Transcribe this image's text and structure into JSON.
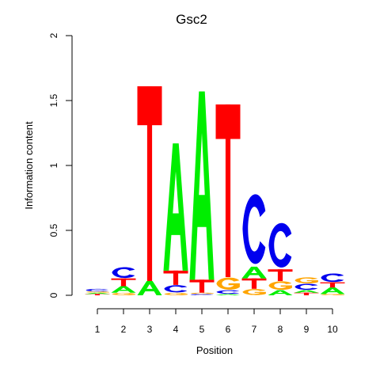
{
  "chart_data": {
    "type": "sequence_logo",
    "title": "Gsc2",
    "xlabel": "Position",
    "ylabel": "Information content",
    "ylim": [
      0,
      2
    ],
    "yticks": [
      "0",
      "0.5",
      "1",
      "1.5",
      "2"
    ],
    "x": [
      "1",
      "2",
      "3",
      "4",
      "5",
      "6",
      "7",
      "8",
      "9",
      "10"
    ],
    "colors": {
      "A": "#00ee00",
      "C": "#0000ee",
      "G": "#ffa500",
      "T": "#ff0000"
    },
    "positions": [
      {
        "position": 1,
        "letters": [
          {
            "base": "T",
            "height": 0.01
          },
          {
            "base": "A",
            "height": 0.01
          },
          {
            "base": "G",
            "height": 0.01
          },
          {
            "base": "C",
            "height": 0.02
          }
        ]
      },
      {
        "position": 2,
        "letters": [
          {
            "base": "G",
            "height": 0.02
          },
          {
            "base": "A",
            "height": 0.05
          },
          {
            "base": "T",
            "height": 0.06
          },
          {
            "base": "C",
            "height": 0.09
          }
        ]
      },
      {
        "position": 3,
        "letters": [
          {
            "base": "A",
            "height": 0.11
          },
          {
            "base": "T",
            "height": 1.5
          }
        ]
      },
      {
        "position": 4,
        "letters": [
          {
            "base": "G",
            "height": 0.02
          },
          {
            "base": "C",
            "height": 0.06
          },
          {
            "base": "T",
            "height": 0.11
          },
          {
            "base": "A",
            "height": 0.98
          }
        ]
      },
      {
        "position": 5,
        "letters": [
          {
            "base": "C",
            "height": 0.01
          },
          {
            "base": "G",
            "height": 0.01
          },
          {
            "base": "T",
            "height": 0.1
          },
          {
            "base": "A",
            "height": 1.45
          }
        ]
      },
      {
        "position": 6,
        "letters": [
          {
            "base": "A",
            "height": 0.01
          },
          {
            "base": "C",
            "height": 0.03
          },
          {
            "base": "G",
            "height": 0.1
          },
          {
            "base": "T",
            "height": 1.33
          }
        ]
      },
      {
        "position": 7,
        "letters": [
          {
            "base": "G",
            "height": 0.05
          },
          {
            "base": "T",
            "height": 0.08
          },
          {
            "base": "A",
            "height": 0.09
          },
          {
            "base": "C",
            "height": 0.58
          }
        ]
      },
      {
        "position": 8,
        "letters": [
          {
            "base": "A",
            "height": 0.04
          },
          {
            "base": "G",
            "height": 0.07
          },
          {
            "base": "T",
            "height": 0.09
          },
          {
            "base": "C",
            "height": 0.37
          }
        ]
      },
      {
        "position": 9,
        "letters": [
          {
            "base": "T",
            "height": 0.02
          },
          {
            "base": "A",
            "height": 0.02
          },
          {
            "base": "C",
            "height": 0.05
          },
          {
            "base": "G",
            "height": 0.05
          }
        ]
      },
      {
        "position": 10,
        "letters": [
          {
            "base": "G",
            "height": 0.01
          },
          {
            "base": "A",
            "height": 0.05
          },
          {
            "base": "T",
            "height": 0.04
          },
          {
            "base": "C",
            "height": 0.07
          }
        ]
      }
    ]
  }
}
